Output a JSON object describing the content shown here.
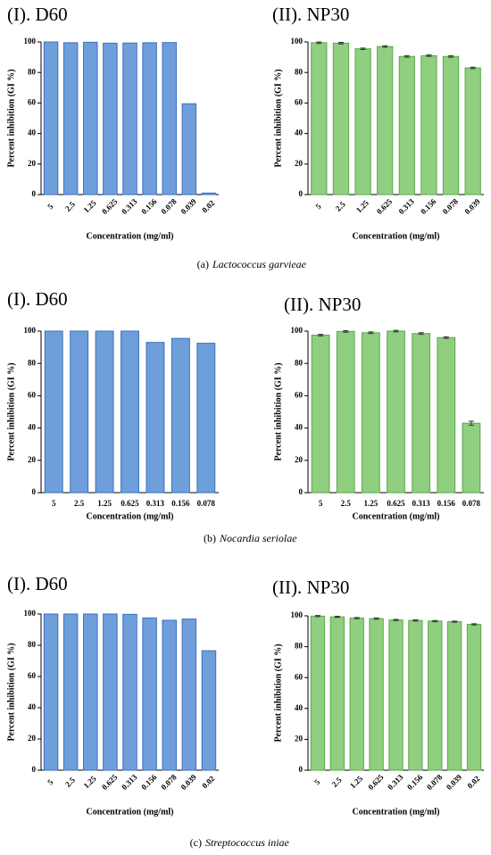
{
  "chart_data": [
    {
      "type": "bar",
      "title": "(I). D60",
      "xlabel": "Concentration (mg/ml)",
      "ylabel": "Percent inhibition (GI %)",
      "categories": [
        "5",
        "2.5",
        "1.25",
        "0.625",
        "0.313",
        "0.156",
        "0.078",
        "0.039",
        "0.02"
      ],
      "values": [
        100,
        99.5,
        99.8,
        99.2,
        99.3,
        99.5,
        99.6,
        59.5,
        1
      ],
      "color": "#6f9fdb",
      "ylim": [
        0,
        100
      ],
      "yticks": [
        0,
        20,
        40,
        60,
        80,
        100
      ]
    },
    {
      "type": "bar",
      "title": "(II). NP30",
      "xlabel": "Concentration (mg/ml)",
      "ylabel": "Percent inhibition (GI %)",
      "categories": [
        "5",
        "2.5",
        "1.25",
        "0.625",
        "0.313",
        "0.156",
        "0.078",
        "0.039"
      ],
      "values": [
        99.5,
        99.2,
        95.5,
        97,
        90.5,
        91,
        90.5,
        83
      ],
      "errors": [
        0.5,
        0.5,
        0.5,
        0.5,
        0.5,
        0.5,
        0.5,
        0.5
      ],
      "color": "#8fcf7f",
      "ylim": [
        0,
        100
      ],
      "yticks": [
        0,
        20,
        40,
        60,
        80,
        100
      ]
    },
    {
      "type": "bar",
      "title": "(I). D60",
      "xlabel": "Concentration (mg/ml)",
      "ylabel": "Percent inhibition (GI %)",
      "categories": [
        "5",
        "2.5",
        "1.25",
        "0.625",
        "0.313",
        "0.156",
        "0.078"
      ],
      "values": [
        100,
        100,
        100,
        100,
        93,
        95.5,
        92.5
      ],
      "color": "#6f9fdb",
      "ylim": [
        0,
        100
      ],
      "yticks": [
        0,
        20,
        40,
        60,
        80,
        100
      ]
    },
    {
      "type": "bar",
      "title": "(II). NP30",
      "xlabel": "Concentration (mg/ml)",
      "ylabel": "Percent inhibition (GI %)",
      "categories": [
        "5",
        "2.5",
        "1.25",
        "0.625",
        "0.313",
        "0.156",
        "0.078"
      ],
      "values": [
        97.5,
        99.8,
        99,
        100,
        98.5,
        96,
        43
      ],
      "errors": [
        0.5,
        0.5,
        0.5,
        0.5,
        0.5,
        0.5,
        1.2
      ],
      "color": "#8fcf7f",
      "ylim": [
        0,
        100
      ],
      "yticks": [
        0,
        20,
        40,
        60,
        80,
        100
      ]
    },
    {
      "type": "bar",
      "title": "(I). D60",
      "xlabel": "Concentration (mg/ml)",
      "ylabel": "Percent inhibition (GI %)",
      "categories": [
        "5",
        "2.5",
        "1.25",
        "0.625",
        "0.313",
        "0.156",
        "0.078",
        "0.039",
        "0.02"
      ],
      "values": [
        100,
        100,
        100,
        100,
        99.8,
        97.5,
        96,
        96.8,
        76.5
      ],
      "color": "#6f9fdb",
      "ylim": [
        0,
        100
      ],
      "yticks": [
        0,
        20,
        40,
        60,
        80,
        100
      ]
    },
    {
      "type": "bar",
      "title": "(II). NP30",
      "xlabel": "Concentration (mg/ml)",
      "ylabel": "Percent inhibition (GI %)",
      "categories": [
        "5",
        "2.5",
        "1.25",
        "0.625",
        "0.313",
        "0.156",
        "0.078",
        "0.039",
        "0.02"
      ],
      "values": [
        99.8,
        99.3,
        98.5,
        98.2,
        97.3,
        97,
        96.6,
        96.2,
        94.5
      ],
      "errors": [
        0.4,
        0.4,
        0.4,
        0.4,
        0.4,
        0.4,
        0.4,
        0.4,
        0.4
      ],
      "color": "#8fcf7f",
      "ylim": [
        0,
        100
      ],
      "yticks": [
        0,
        20,
        40,
        60,
        80,
        100
      ]
    }
  ],
  "captions": [
    {
      "label": "(a)",
      "species": "Lactococcus garvieae"
    },
    {
      "label": "(b)",
      "species": "Nocardia seriolae"
    },
    {
      "label": "(c)",
      "species": "Streptococcus iniae"
    }
  ]
}
